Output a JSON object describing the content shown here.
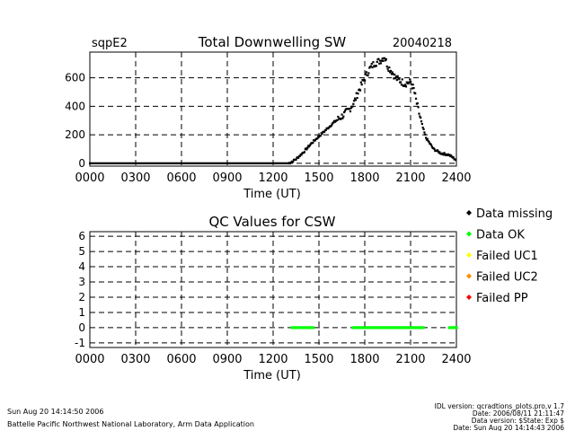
{
  "top": {
    "site": "sqpE2",
    "title": "Total Downwelling SW",
    "date": "20040218"
  },
  "qc": {
    "title": "QC Values for CSW"
  },
  "legend": [
    {
      "label": "Data missing",
      "color": "#000000"
    },
    {
      "label": "Data OK",
      "color": "#00ff00"
    },
    {
      "label": "Failed UC1",
      "color": "#ffff00"
    },
    {
      "label": "Failed UC2",
      "color": "#ff8c00"
    },
    {
      "label": "Failed PP",
      "color": "#ff0000"
    }
  ],
  "footer": {
    "left1": "Sun Aug 20 14:14:50 2006",
    "left2": "Battelle Pacific Northwest National Laboratory, Arm Data Application",
    "right1": "IDL version: qcradtions_plots.pro,v 1.7",
    "right2": "Date: 2006/08/11 21:11:47",
    "right3": "Data version: $State: Exp $",
    "right4": "Date: Sun Aug 20 14:14:43 2006"
  },
  "chart_data": [
    {
      "type": "scatter",
      "title": "Total Downwelling SW",
      "xlabel": "Time (UT)",
      "ylabel": "",
      "xlim": [
        0,
        2400
      ],
      "ylim": [
        -20,
        780
      ],
      "xticks": [
        "0000",
        "0300",
        "0600",
        "0900",
        "1200",
        "1500",
        "1800",
        "2100",
        "2400"
      ],
      "yticks": [
        "0",
        "200",
        "400",
        "600"
      ],
      "ytick_values": [
        0,
        200,
        400,
        600
      ],
      "grid": true,
      "series": [
        {
          "name": "Total Downwelling SW",
          "x": [
            0,
            600,
            1200,
            1300,
            1320,
            1350,
            1400,
            1450,
            1500,
            1550,
            1600,
            1650,
            1700,
            1730,
            1760,
            1800,
            1830,
            1860,
            1900,
            1930,
            1950,
            1980,
            2000,
            2030,
            2060,
            2100,
            2120,
            2140,
            2160,
            2180,
            2200,
            2250,
            2300,
            2350,
            2390,
            2400
          ],
          "values": [
            0,
            0,
            0,
            0,
            10,
            30,
            80,
            140,
            190,
            240,
            290,
            330,
            380,
            430,
            510,
            600,
            660,
            700,
            720,
            750,
            680,
            640,
            600,
            580,
            560,
            570,
            520,
            420,
            330,
            250,
            180,
            100,
            70,
            60,
            30,
            20
          ]
        }
      ]
    },
    {
      "type": "scatter",
      "title": "QC Values for CSW",
      "xlabel": "Time (UT)",
      "ylabel": "",
      "xlim": [
        0,
        2400
      ],
      "ylim": [
        -1.3,
        6.3
      ],
      "xticks": [
        "0000",
        "0300",
        "0600",
        "0900",
        "1200",
        "1500",
        "1800",
        "2100",
        "2400"
      ],
      "yticks": [
        "6",
        "5",
        "4",
        "3",
        "2",
        "1",
        "0",
        "-1"
      ],
      "ytick_values": [
        6,
        5,
        4,
        3,
        2,
        1,
        0,
        -1
      ],
      "grid": true,
      "series": [
        {
          "name": "Data OK",
          "color": "#00ff00",
          "segments": [
            [
              1320,
              1460
            ],
            [
              1720,
              2180
            ],
            [
              2350,
              2400
            ]
          ],
          "value": 0
        }
      ]
    }
  ]
}
